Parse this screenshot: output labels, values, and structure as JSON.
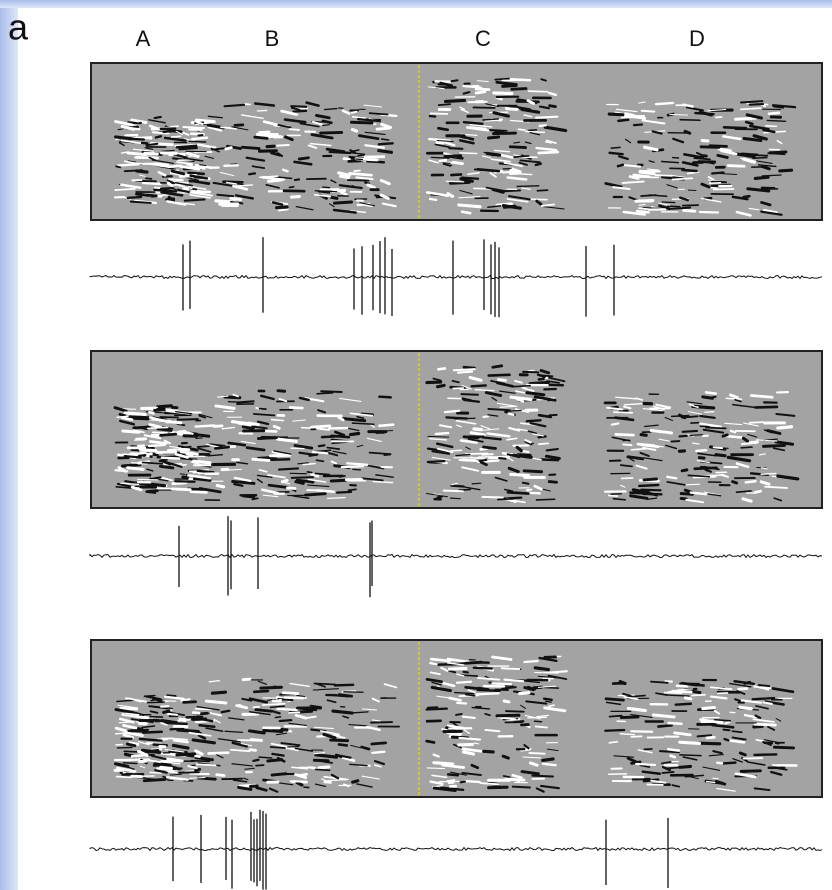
{
  "panel_label": "a",
  "section_labels": [
    "A",
    "B",
    "C",
    "D"
  ]
}
